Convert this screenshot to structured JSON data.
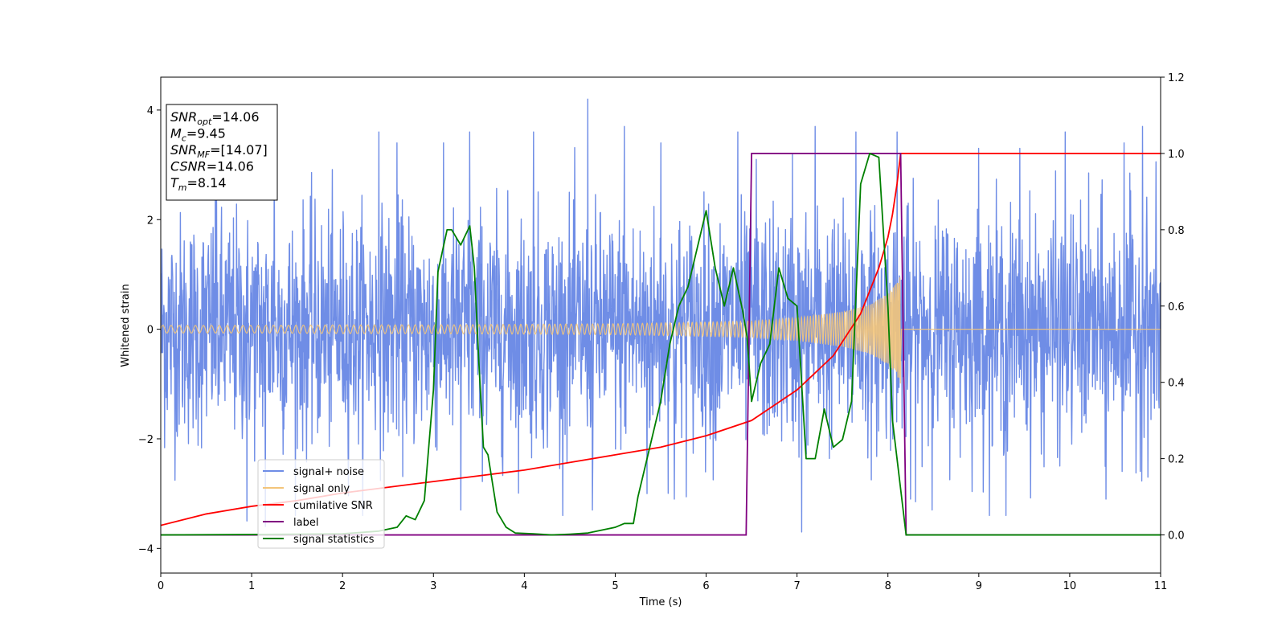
{
  "chart_data": {
    "type": "line",
    "xlabel": "Time (s)",
    "ylabel": "Whitened strain",
    "xlim": [
      0,
      11
    ],
    "ylim_left": [
      -4.45,
      4.6
    ],
    "ylim_right": [
      -0.1,
      1.2
    ],
    "x_ticks": [
      "0",
      "1",
      "2",
      "3",
      "4",
      "5",
      "6",
      "7",
      "8",
      "9",
      "10",
      "11"
    ],
    "y_left_ticks": [
      "−4",
      "−2",
      "0",
      "2",
      "4"
    ],
    "y_right_ticks": [
      "0.0",
      "0.2",
      "0.4",
      "0.6",
      "0.8",
      "1.0",
      "1.2"
    ],
    "info_box": [
      {
        "base": "SNR",
        "sub": "opt",
        "value": "=14.06"
      },
      {
        "base": "M",
        "sub": "c",
        "value": "=9.45"
      },
      {
        "base": "SNR",
        "sub": "MF",
        "value": "=[14.07]"
      },
      {
        "base": "CSNR",
        "sub": "",
        "value": "=14.06"
      },
      {
        "base": "T",
        "sub": "m",
        "value": "=8.14"
      }
    ],
    "legend": {
      "placement": "lower-left",
      "entries": [
        {
          "label": "signal+ noise",
          "color": "#6f8de6"
        },
        {
          "label": "signal only",
          "color": "#f3c57a"
        },
        {
          "label": "cumilative SNR",
          "color": "#ff0000"
        },
        {
          "label": "label",
          "color": "#800080"
        },
        {
          "label": "signal statistics",
          "color": "#008000"
        }
      ]
    },
    "series": [
      {
        "name": "signal+ noise",
        "axis": "left",
        "color": "#6f8de6",
        "noise_rms": 1.0,
        "noise_peaks": [
          [
            0.6,
            3.2
          ],
          [
            1.25,
            3.9
          ],
          [
            2.4,
            3.6
          ],
          [
            2.6,
            3.4
          ],
          [
            3.3,
            -3.3
          ],
          [
            3.4,
            3.6
          ],
          [
            4.1,
            3.6
          ],
          [
            4.7,
            4.2
          ],
          [
            4.75,
            -3.3
          ],
          [
            5.1,
            3.7
          ],
          [
            5.35,
            -3.0
          ],
          [
            5.5,
            3.4
          ],
          [
            5.65,
            -3.1
          ],
          [
            6.35,
            3.6
          ],
          [
            6.55,
            3.1
          ],
          [
            6.95,
            3.2
          ],
          [
            7.05,
            -3.7
          ],
          [
            7.2,
            3.7
          ],
          [
            7.65,
            3.6
          ],
          [
            8.1,
            3.6
          ],
          [
            8.25,
            -3.1
          ],
          [
            9.0,
            3.3
          ],
          [
            9.3,
            -3.4
          ],
          [
            9.45,
            3.3
          ],
          [
            9.95,
            3.6
          ],
          [
            10.4,
            -3.1
          ],
          [
            10.6,
            3.4
          ],
          [
            10.8,
            3.7
          ],
          [
            1.15,
            -3.6
          ],
          [
            0.95,
            -3.5
          ]
        ]
      },
      {
        "name": "signal only",
        "axis": "left",
        "color": "#f3c57a",
        "envelope": {
          "x": [
            0,
            1,
            2,
            3,
            4,
            5,
            6,
            6.5,
            7,
            7.5,
            7.8,
            8.0,
            8.1,
            8.14,
            8.15,
            11
          ],
          "amp": [
            0.07,
            0.07,
            0.08,
            0.08,
            0.09,
            0.1,
            0.13,
            0.15,
            0.21,
            0.32,
            0.45,
            0.65,
            0.85,
            1.0,
            0.0,
            0.0
          ]
        }
      },
      {
        "name": "cumilative SNR",
        "axis": "right",
        "color": "#ff0000",
        "x": [
          0,
          0.5,
          1,
          1.5,
          2,
          2.5,
          3,
          3.5,
          4,
          4.5,
          5,
          5.5,
          6,
          6.5,
          7,
          7.4,
          7.7,
          7.9,
          8.0,
          8.05,
          8.1,
          8.14,
          11
        ],
        "y": [
          0.025,
          0.055,
          0.075,
          0.09,
          0.11,
          0.125,
          0.14,
          0.155,
          0.17,
          0.19,
          0.21,
          0.23,
          0.26,
          0.3,
          0.38,
          0.47,
          0.58,
          0.7,
          0.78,
          0.84,
          0.92,
          1.0,
          1.0
        ]
      },
      {
        "name": "label",
        "axis": "right",
        "color": "#800080",
        "x": [
          0,
          6.44,
          6.5,
          8.14,
          8.2,
          11
        ],
        "y": [
          0,
          0,
          1,
          1,
          0,
          0
        ]
      },
      {
        "name": "signal statistics",
        "axis": "right",
        "color": "#008000",
        "x": [
          0,
          1,
          2,
          2.4,
          2.6,
          2.7,
          2.8,
          2.9,
          3.0,
          3.05,
          3.15,
          3.2,
          3.3,
          3.4,
          3.45,
          3.5,
          3.55,
          3.6,
          3.7,
          3.8,
          3.9,
          4.1,
          4.3,
          4.5,
          4.7,
          5.0,
          5.1,
          5.2,
          5.25,
          5.35,
          5.5,
          5.6,
          5.7,
          5.8,
          5.9,
          6.0,
          6.1,
          6.2,
          6.3,
          6.4,
          6.45,
          6.5,
          6.6,
          6.7,
          6.8,
          6.9,
          7.0,
          7.1,
          7.2,
          7.3,
          7.4,
          7.5,
          7.6,
          7.7,
          7.8,
          7.9,
          8.0,
          8.05,
          8.1,
          8.15,
          8.2,
          11
        ],
        "y": [
          0.0,
          0.001,
          0.003,
          0.01,
          0.02,
          0.05,
          0.04,
          0.09,
          0.38,
          0.69,
          0.8,
          0.8,
          0.76,
          0.81,
          0.7,
          0.45,
          0.23,
          0.21,
          0.06,
          0.02,
          0.005,
          0.003,
          0.0,
          0.002,
          0.005,
          0.02,
          0.03,
          0.03,
          0.1,
          0.2,
          0.35,
          0.5,
          0.6,
          0.65,
          0.75,
          0.85,
          0.7,
          0.6,
          0.7,
          0.59,
          0.52,
          0.35,
          0.45,
          0.5,
          0.7,
          0.62,
          0.6,
          0.2,
          0.2,
          0.33,
          0.23,
          0.25,
          0.35,
          0.92,
          1.0,
          0.99,
          0.6,
          0.3,
          0.2,
          0.1,
          0.0,
          0.0
        ]
      }
    ]
  }
}
